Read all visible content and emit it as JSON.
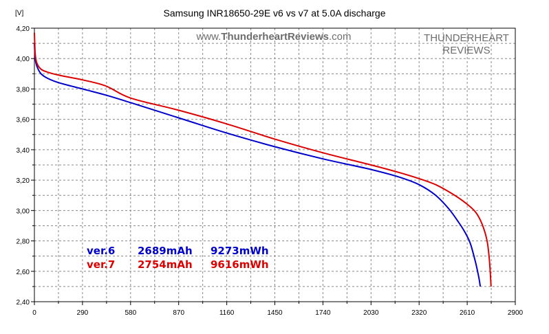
{
  "chart_data": {
    "type": "line",
    "title": "Samsung INR18650-29E v6 vs v7 at 5.0A discharge",
    "ylabel": "[V]",
    "xlabel": "",
    "xlim": [
      0,
      2900
    ],
    "ylim": [
      2.4,
      4.2
    ],
    "x_ticks": [
      "0",
      "290",
      "580",
      "870",
      "1160",
      "1450",
      "1740",
      "2030",
      "2320",
      "2610",
      "2900"
    ],
    "y_ticks": [
      "2,40",
      "2,60",
      "2,80",
      "3,00",
      "3,20",
      "3,40",
      "3,60",
      "3,80",
      "4,00",
      "4,20"
    ],
    "grid": true,
    "watermark": {
      "site_prefix": "www.",
      "site_bold": "ThunderheartReviews",
      "site_suffix": ".com",
      "line1": "THUNDERHEART",
      "line2": "REVIEWS"
    },
    "series": [
      {
        "name": "ver.6",
        "color": "#0000cc",
        "capacity": "2689mAh",
        "energy": "9273mWh",
        "x": [
          0,
          5,
          15,
          40,
          80,
          150,
          290,
          430,
          580,
          870,
          1160,
          1450,
          1740,
          2030,
          2200,
          2320,
          2420,
          2500,
          2560,
          2600,
          2630,
          2660,
          2680,
          2689
        ],
        "y": [
          4.1,
          4.0,
          3.95,
          3.9,
          3.87,
          3.84,
          3.8,
          3.76,
          3.71,
          3.61,
          3.51,
          3.42,
          3.34,
          3.27,
          3.22,
          3.17,
          3.1,
          3.01,
          2.92,
          2.85,
          2.78,
          2.66,
          2.56,
          2.5
        ]
      },
      {
        "name": "ver.7",
        "color": "#dd0000",
        "capacity": "2754mAh",
        "energy": "9616mWh",
        "x": [
          0,
          5,
          15,
          40,
          80,
          150,
          290,
          430,
          580,
          870,
          1160,
          1450,
          1740,
          2030,
          2200,
          2320,
          2420,
          2520,
          2600,
          2660,
          2700,
          2730,
          2745,
          2754
        ],
        "y": [
          4.17,
          4.03,
          3.97,
          3.93,
          3.91,
          3.89,
          3.86,
          3.82,
          3.74,
          3.66,
          3.57,
          3.47,
          3.38,
          3.3,
          3.25,
          3.21,
          3.17,
          3.11,
          3.05,
          2.99,
          2.91,
          2.8,
          2.66,
          2.5
        ]
      }
    ]
  }
}
